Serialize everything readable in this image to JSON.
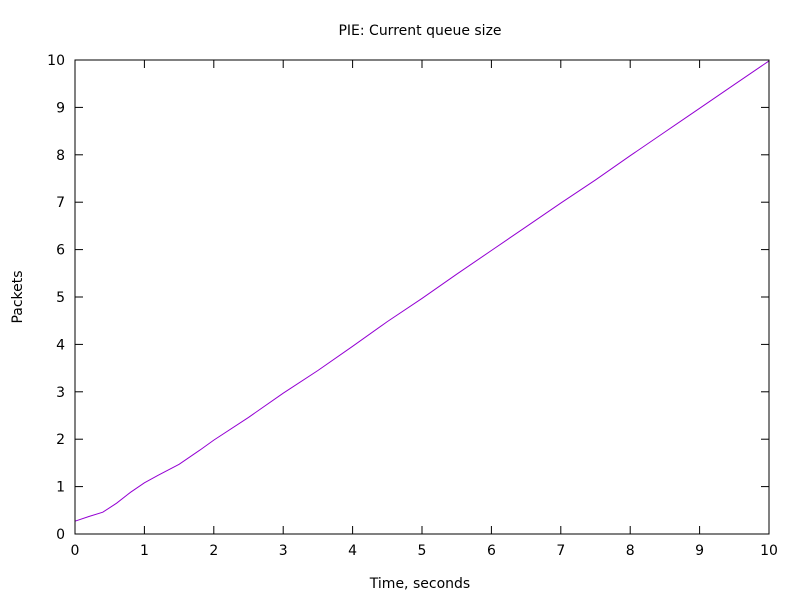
{
  "chart_data": {
    "type": "line",
    "title": "PIE: Current queue size",
    "xlabel": "Time, seconds",
    "ylabel": "Packets",
    "xlim": [
      0,
      10
    ],
    "ylim": [
      0,
      10
    ],
    "x_ticks": [
      "0",
      "1",
      "2",
      "3",
      "4",
      "5",
      "6",
      "7",
      "8",
      "9",
      "10"
    ],
    "y_ticks": [
      "0",
      "1",
      "2",
      "3",
      "4",
      "5",
      "6",
      "7",
      "8",
      "9",
      "10"
    ],
    "grid": false,
    "legend": "none",
    "series": [
      {
        "color": "#9400d3",
        "x": [
          0,
          0.2,
          0.4,
          0.6,
          0.8,
          1.0,
          1.2,
          1.5,
          1.8,
          2.0,
          2.5,
          3.0,
          3.5,
          4.0,
          4.5,
          5.0,
          5.5,
          6.0,
          6.5,
          7.0,
          7.5,
          8.0,
          8.5,
          9.0,
          9.5,
          10.0
        ],
        "y": [
          0.27,
          0.37,
          0.46,
          0.65,
          0.88,
          1.08,
          1.24,
          1.47,
          1.77,
          1.98,
          2.46,
          2.97,
          3.45,
          3.96,
          4.48,
          4.97,
          5.48,
          5.98,
          6.48,
          6.98,
          7.47,
          7.98,
          8.48,
          8.98,
          9.48,
          9.98
        ]
      }
    ]
  }
}
